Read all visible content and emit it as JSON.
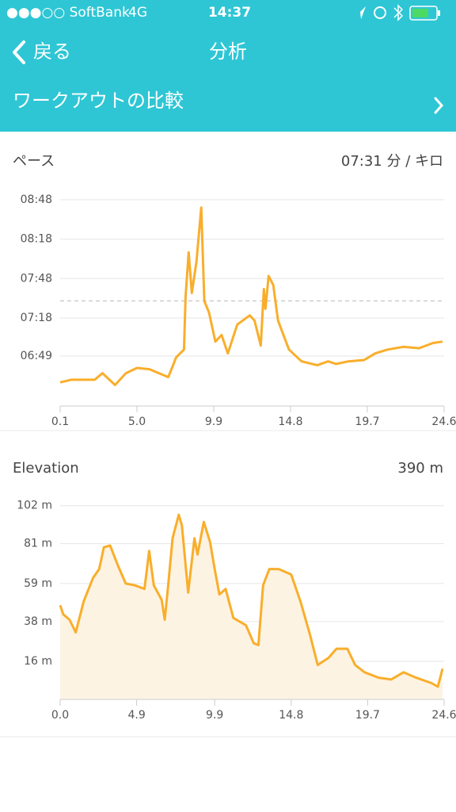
{
  "status_bar": {
    "carrier": "●●●○○ SoftBank",
    "network": "4G",
    "time": "14:37"
  },
  "nav": {
    "back": "戻る",
    "title": "分析"
  },
  "compare_row": {
    "label": "ワークアウトの比較"
  },
  "chart_data": [
    {
      "type": "line",
      "title": "ペース",
      "summary": "07:31 分 / キロ",
      "color": "#f9ae2b",
      "grid": true,
      "reference_line": 451,
      "x": [
        0.1,
        0.8,
        2.3,
        2.8,
        3.6,
        4.3,
        5.0,
        5.8,
        7.0,
        7.5,
        8.0,
        8.1,
        8.3,
        8.5,
        8.8,
        9.1,
        9.3,
        9.6,
        10.0,
        10.4,
        10.8,
        11.4,
        12.2,
        12.5,
        12.9,
        13.1,
        13.2,
        13.4,
        13.7,
        14.0,
        14.7,
        15.5,
        16.5,
        17.2,
        17.7,
        18.5,
        19.5,
        20.2,
        21.0,
        22.0,
        23.0,
        23.9,
        24.5
      ],
      "values": [
        389,
        391,
        391,
        396,
        387,
        396,
        400,
        399,
        393,
        408,
        414,
        454,
        488,
        457,
        481,
        522,
        451,
        442,
        420,
        425,
        411,
        433,
        440,
        436,
        417,
        460,
        445,
        470,
        463,
        436,
        414,
        405,
        402,
        405,
        403,
        405,
        406,
        411,
        414,
        416,
        415,
        419,
        420
      ],
      "xlim": [
        0.1,
        24.6
      ],
      "xticks": [
        0.1,
        {
          "value": 5,
          "label": "5.0"
        },
        9.9,
        14.8,
        19.7,
        24.6
      ],
      "ylim": [
        371,
        540
      ],
      "yticks": [
        {
          "value": 528,
          "label": "08:48"
        },
        {
          "value": 498,
          "label": "08:18"
        },
        {
          "value": 468,
          "label": "07:48"
        },
        {
          "value": 438,
          "label": "07:18"
        },
        {
          "value": 409,
          "label": "06:49"
        }
      ]
    },
    {
      "type": "area",
      "title": "Elevation",
      "summary": "390 m",
      "color": "#f9ae2b",
      "fill": "#fdf3e3",
      "grid": true,
      "x": [
        0,
        0.2,
        0.6,
        1.0,
        1.5,
        2.1,
        2.5,
        2.8,
        3.2,
        3.7,
        4.2,
        4.8,
        5.4,
        5.7,
        6.0,
        6.5,
        6.7,
        6.9,
        7.2,
        7.6,
        7.8,
        8.2,
        8.6,
        8.8,
        9.2,
        9.6,
        9.9,
        10.2,
        10.6,
        11.1,
        11.9,
        12.4,
        12.7,
        13.0,
        13.4,
        14.0,
        14.8,
        15.4,
        16.0,
        16.5,
        17.2,
        17.7,
        18.4,
        18.9,
        19.5,
        20.4,
        21.2,
        22.0,
        22.8,
        23.8,
        24.2,
        24.5
      ],
      "values": [
        47,
        42,
        39,
        32,
        49,
        62,
        67,
        79,
        80,
        69,
        59,
        58,
        56,
        77,
        58,
        50,
        39,
        56,
        84,
        97,
        91,
        54,
        84,
        75,
        93,
        82,
        67,
        53,
        56,
        40,
        36,
        26,
        25,
        58,
        67,
        67,
        64,
        49,
        31,
        14,
        18,
        23,
        23,
        14,
        10,
        7,
        6,
        10,
        7,
        4,
        2,
        12
      ],
      "xlim": [
        0,
        24.6
      ],
      "xticks": [
        {
          "value": 0,
          "label": "0.0"
        },
        4.9,
        9.9,
        14.8,
        19.7,
        24.6
      ],
      "ylim": [
        -5,
        108
      ],
      "yticks": [
        {
          "value": 102,
          "label": "102 m"
        },
        {
          "value": 81,
          "label": "81 m"
        },
        {
          "value": 59,
          "label": "59 m"
        },
        {
          "value": 38,
          "label": "38 m"
        },
        {
          "value": 16,
          "label": "16 m"
        }
      ]
    }
  ]
}
